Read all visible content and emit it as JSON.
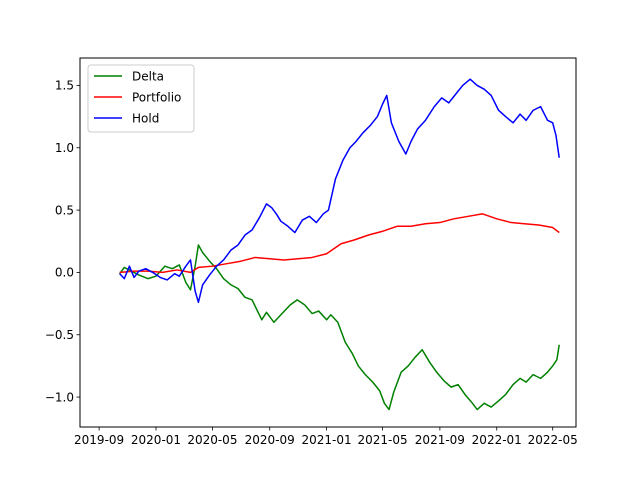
{
  "chart_data": {
    "type": "line",
    "title": "",
    "xlabel": "",
    "ylabel": "",
    "x_tick_labels": [
      "2019-09",
      "2020-01",
      "2020-05",
      "2020-09",
      "2021-01",
      "2021-05",
      "2021-09",
      "2022-01",
      "2022-05"
    ],
    "y_ticks": [
      -1.0,
      -0.5,
      0.0,
      0.5,
      1.0,
      1.5
    ],
    "y_tick_labels": [
      "−1.0",
      "−0.5",
      "0.0",
      "0.5",
      "1.0",
      "1.5"
    ],
    "xlim": [
      "2019-07-22",
      "2022-06-20"
    ],
    "ylim": [
      -1.24,
      1.72
    ],
    "grid": false,
    "legend_position": "top-left",
    "series": [
      {
        "name": "Delta",
        "color": "#008000",
        "points": [
          [
            "2019-10-15",
            -0.01
          ],
          [
            "2019-10-25",
            0.04
          ],
          [
            "2019-11-10",
            0.01
          ],
          [
            "2019-11-25",
            -0.02
          ],
          [
            "2019-12-15",
            -0.05
          ],
          [
            "2020-01-01",
            -0.03
          ],
          [
            "2020-01-20",
            0.05
          ],
          [
            "2020-02-05",
            0.03
          ],
          [
            "2020-02-20",
            0.06
          ],
          [
            "2020-03-05",
            -0.08
          ],
          [
            "2020-03-15",
            -0.14
          ],
          [
            "2020-03-25",
            0.05
          ],
          [
            "2020-04-01",
            0.22
          ],
          [
            "2020-04-10",
            0.16
          ],
          [
            "2020-04-25",
            0.09
          ],
          [
            "2020-05-10",
            0.03
          ],
          [
            "2020-05-25",
            -0.05
          ],
          [
            "2020-06-10",
            -0.1
          ],
          [
            "2020-06-25",
            -0.13
          ],
          [
            "2020-07-10",
            -0.2
          ],
          [
            "2020-07-25",
            -0.22
          ],
          [
            "2020-08-15",
            -0.38
          ],
          [
            "2020-08-25",
            -0.32
          ],
          [
            "2020-09-10",
            -0.4
          ],
          [
            "2020-09-25",
            -0.34
          ],
          [
            "2020-10-15",
            -0.26
          ],
          [
            "2020-10-30",
            -0.22
          ],
          [
            "2020-11-15",
            -0.26
          ],
          [
            "2020-12-01",
            -0.33
          ],
          [
            "2020-12-15",
            -0.31
          ],
          [
            "2021-01-01",
            -0.38
          ],
          [
            "2021-01-10",
            -0.34
          ],
          [
            "2021-01-25",
            -0.4
          ],
          [
            "2021-02-10",
            -0.56
          ],
          [
            "2021-02-25",
            -0.65
          ],
          [
            "2021-03-10",
            -0.75
          ],
          [
            "2021-03-25",
            -0.82
          ],
          [
            "2021-04-10",
            -0.88
          ],
          [
            "2021-04-25",
            -0.95
          ],
          [
            "2021-05-05",
            -1.05
          ],
          [
            "2021-05-15",
            -1.1
          ],
          [
            "2021-05-25",
            -0.96
          ],
          [
            "2021-06-10",
            -0.8
          ],
          [
            "2021-06-25",
            -0.75
          ],
          [
            "2021-07-10",
            -0.68
          ],
          [
            "2021-07-25",
            -0.62
          ],
          [
            "2021-08-10",
            -0.72
          ],
          [
            "2021-08-25",
            -0.8
          ],
          [
            "2021-09-10",
            -0.87
          ],
          [
            "2021-09-25",
            -0.92
          ],
          [
            "2021-10-10",
            -0.9
          ],
          [
            "2021-10-25",
            -0.98
          ],
          [
            "2021-11-10",
            -1.05
          ],
          [
            "2021-11-20",
            -1.1
          ],
          [
            "2021-12-05",
            -1.05
          ],
          [
            "2021-12-20",
            -1.08
          ],
          [
            "2022-01-05",
            -1.03
          ],
          [
            "2022-01-20",
            -0.98
          ],
          [
            "2022-02-05",
            -0.9
          ],
          [
            "2022-02-20",
            -0.85
          ],
          [
            "2022-03-05",
            -0.88
          ],
          [
            "2022-03-20",
            -0.82
          ],
          [
            "2022-04-05",
            -0.85
          ],
          [
            "2022-04-20",
            -0.8
          ],
          [
            "2022-05-01",
            -0.75
          ],
          [
            "2022-05-10",
            -0.7
          ],
          [
            "2022-05-15",
            -0.58
          ]
        ]
      },
      {
        "name": "Portfolio",
        "color": "#ff0000",
        "points": [
          [
            "2019-10-15",
            0.0
          ],
          [
            "2019-11-15",
            0.01
          ],
          [
            "2019-12-15",
            0.01
          ],
          [
            "2020-01-15",
            0.0
          ],
          [
            "2020-02-15",
            0.02
          ],
          [
            "2020-03-15",
            0.0
          ],
          [
            "2020-04-01",
            0.04
          ],
          [
            "2020-05-01",
            0.05
          ],
          [
            "2020-06-01",
            0.07
          ],
          [
            "2020-07-01",
            0.09
          ],
          [
            "2020-08-01",
            0.12
          ],
          [
            "2020-09-01",
            0.11
          ],
          [
            "2020-10-01",
            0.1
          ],
          [
            "2020-11-01",
            0.11
          ],
          [
            "2020-12-01",
            0.12
          ],
          [
            "2021-01-01",
            0.15
          ],
          [
            "2021-02-01",
            0.23
          ],
          [
            "2021-03-01",
            0.26
          ],
          [
            "2021-04-01",
            0.3
          ],
          [
            "2021-05-01",
            0.33
          ],
          [
            "2021-06-01",
            0.37
          ],
          [
            "2021-07-01",
            0.37
          ],
          [
            "2021-08-01",
            0.39
          ],
          [
            "2021-09-01",
            0.4
          ],
          [
            "2021-10-01",
            0.43
          ],
          [
            "2021-11-01",
            0.45
          ],
          [
            "2021-12-01",
            0.47
          ],
          [
            "2022-01-01",
            0.43
          ],
          [
            "2022-02-01",
            0.4
          ],
          [
            "2022-03-01",
            0.39
          ],
          [
            "2022-04-01",
            0.38
          ],
          [
            "2022-05-01",
            0.36
          ],
          [
            "2022-05-15",
            0.32
          ]
        ]
      },
      {
        "name": "Hold",
        "color": "#0000ff",
        "points": [
          [
            "2019-10-15",
            -0.01
          ],
          [
            "2019-10-25",
            -0.05
          ],
          [
            "2019-11-05",
            0.05
          ],
          [
            "2019-11-15",
            -0.04
          ],
          [
            "2019-11-25",
            0.01
          ],
          [
            "2019-12-10",
            0.03
          ],
          [
            "2019-12-25",
            0.0
          ],
          [
            "2020-01-10",
            -0.04
          ],
          [
            "2020-01-25",
            -0.06
          ],
          [
            "2020-02-10",
            -0.01
          ],
          [
            "2020-02-20",
            -0.03
          ],
          [
            "2020-03-05",
            0.05
          ],
          [
            "2020-03-15",
            0.1
          ],
          [
            "2020-03-25",
            -0.15
          ],
          [
            "2020-04-01",
            -0.24
          ],
          [
            "2020-04-10",
            -0.1
          ],
          [
            "2020-04-25",
            -0.02
          ],
          [
            "2020-05-10",
            0.05
          ],
          [
            "2020-05-25",
            0.1
          ],
          [
            "2020-06-10",
            0.18
          ],
          [
            "2020-06-25",
            0.22
          ],
          [
            "2020-07-10",
            0.3
          ],
          [
            "2020-07-25",
            0.34
          ],
          [
            "2020-08-10",
            0.44
          ],
          [
            "2020-08-25",
            0.55
          ],
          [
            "2020-09-05",
            0.52
          ],
          [
            "2020-09-15",
            0.47
          ],
          [
            "2020-09-25",
            0.41
          ],
          [
            "2020-10-10",
            0.37
          ],
          [
            "2020-10-25",
            0.32
          ],
          [
            "2020-11-10",
            0.42
          ],
          [
            "2020-11-25",
            0.45
          ],
          [
            "2020-12-10",
            0.4
          ],
          [
            "2020-12-25",
            0.47
          ],
          [
            "2021-01-05",
            0.5
          ],
          [
            "2021-01-20",
            0.75
          ],
          [
            "2021-02-05",
            0.9
          ],
          [
            "2021-02-20",
            1.0
          ],
          [
            "2021-03-05",
            1.05
          ],
          [
            "2021-03-20",
            1.12
          ],
          [
            "2021-04-05",
            1.18
          ],
          [
            "2021-04-20",
            1.25
          ],
          [
            "2021-05-01",
            1.35
          ],
          [
            "2021-05-10",
            1.42
          ],
          [
            "2021-05-20",
            1.2
          ],
          [
            "2021-06-05",
            1.05
          ],
          [
            "2021-06-20",
            0.95
          ],
          [
            "2021-07-01",
            1.05
          ],
          [
            "2021-07-15",
            1.15
          ],
          [
            "2021-08-01",
            1.22
          ],
          [
            "2021-08-20",
            1.33
          ],
          [
            "2021-09-05",
            1.4
          ],
          [
            "2021-09-20",
            1.36
          ],
          [
            "2021-10-05",
            1.43
          ],
          [
            "2021-10-20",
            1.5
          ],
          [
            "2021-11-05",
            1.55
          ],
          [
            "2021-11-20",
            1.5
          ],
          [
            "2021-12-05",
            1.47
          ],
          [
            "2021-12-20",
            1.42
          ],
          [
            "2022-01-05",
            1.3
          ],
          [
            "2022-01-20",
            1.25
          ],
          [
            "2022-02-05",
            1.2
          ],
          [
            "2022-02-20",
            1.27
          ],
          [
            "2022-03-05",
            1.22
          ],
          [
            "2022-03-20",
            1.3
          ],
          [
            "2022-04-05",
            1.33
          ],
          [
            "2022-04-20",
            1.22
          ],
          [
            "2022-05-01",
            1.2
          ],
          [
            "2022-05-08",
            1.1
          ],
          [
            "2022-05-15",
            0.92
          ]
        ]
      }
    ]
  }
}
